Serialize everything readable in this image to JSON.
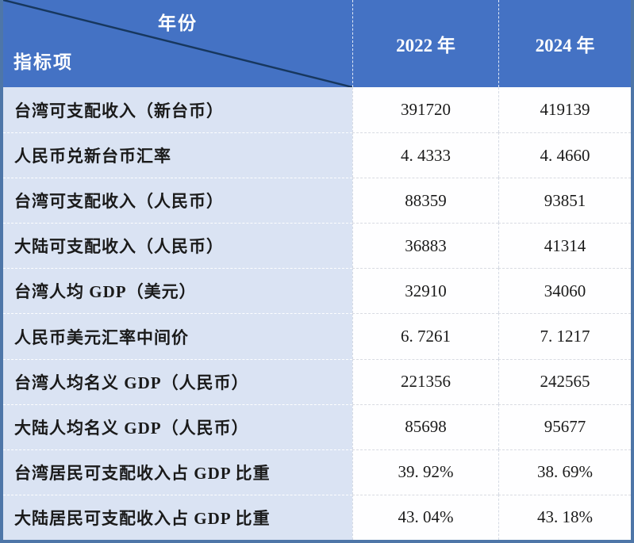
{
  "chart_data": {
    "type": "table",
    "corner": {
      "top": "年份",
      "bottom": "指标项"
    },
    "columns": [
      "2022 年",
      "2024 年"
    ],
    "rows": [
      {
        "label": "台湾可支配收入（新台币）",
        "y2022": "391720",
        "y2024": "419139"
      },
      {
        "label": "人民币兑新台币汇率",
        "y2022": "4. 4333",
        "y2024": "4. 4660"
      },
      {
        "label": "台湾可支配收入（人民币）",
        "y2022": "88359",
        "y2024": "93851"
      },
      {
        "label": "大陆可支配收入（人民币）",
        "y2022": "36883",
        "y2024": "41314"
      },
      {
        "label": "台湾人均 GDP（美元）",
        "y2022": "32910",
        "y2024": "34060"
      },
      {
        "label": "人民币美元汇率中间价",
        "y2022": "6. 7261",
        "y2024": "7. 1217"
      },
      {
        "label": "台湾人均名义 GDP（人民币）",
        "y2022": "221356",
        "y2024": "242565"
      },
      {
        "label": "大陆人均名义 GDP（人民币）",
        "y2022": "85698",
        "y2024": "95677"
      },
      {
        "label": "台湾居民可支配收入占 GDP 比重",
        "y2022": "39. 92%",
        "y2024": "38. 69%"
      },
      {
        "label": "大陆居民可支配收入占 GDP 比重",
        "y2022": "43. 04%",
        "y2024": "43. 18%"
      }
    ],
    "colors": {
      "header_bg": "#4472C4",
      "header_text": "#FFFFFF",
      "label_cell_bg": "#DAE3F3",
      "value_cell_bg": "#FEFEFF",
      "outer_border": "#4E76A8",
      "diagonal_line": "#17375E",
      "body_text": "#1A1A1A"
    }
  }
}
